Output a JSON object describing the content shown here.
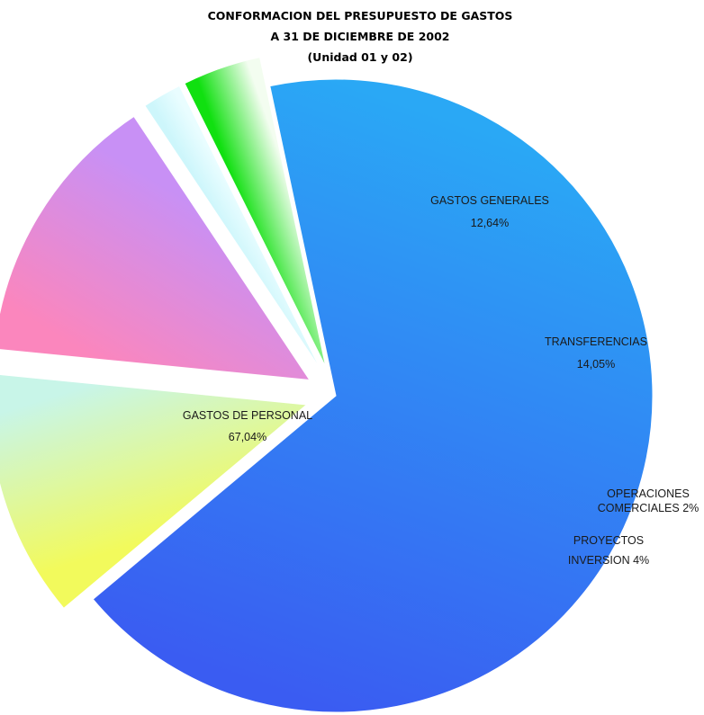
{
  "chart_data": {
    "type": "pie",
    "title": [
      "CONFORMACION DEL PRESUPUESTO DE GASTOS",
      "A 31 DE DICIEMBRE DE 2002",
      "(Unidad 01 y 02)"
    ],
    "slices": [
      {
        "name": "GASTOS DE PERSONAL",
        "value": 67.04,
        "label_lines": [
          "GASTOS DE PERSONAL",
          "67,04%"
        ],
        "exploded": false,
        "colors": [
          "#2aa8f5",
          "#3a5cf2"
        ]
      },
      {
        "name": "GASTOS GENERALES",
        "value": 12.64,
        "label_lines": [
          "GASTOS GENERALES",
          "12,64%"
        ],
        "exploded": true,
        "colors": [
          "#f2fa5c",
          "#c8f5e8"
        ]
      },
      {
        "name": "TRANSFERENCIAS",
        "value": 14.05,
        "label_lines": [
          "TRANSFERENCIAS",
          "14,05%"
        ],
        "exploded": true,
        "colors": [
          "#fb86bd",
          "#c890f5"
        ]
      },
      {
        "name": "OPERACIONES COMERCIALES",
        "value": 2,
        "label_lines": [
          "OPERACIONES",
          "COMERCIALES 2%"
        ],
        "exploded": true,
        "colors": [
          "#cdf6fb",
          "#e9fdff"
        ]
      },
      {
        "name": "PROYECTOS INVERSION",
        "value": 4,
        "label_lines": [
          "PROYECTOS",
          "INVERSION 4%"
        ],
        "exploded": true,
        "colors": [
          "#10e010",
          "#f3fdf0"
        ]
      }
    ],
    "legend": "none",
    "grid": false
  }
}
